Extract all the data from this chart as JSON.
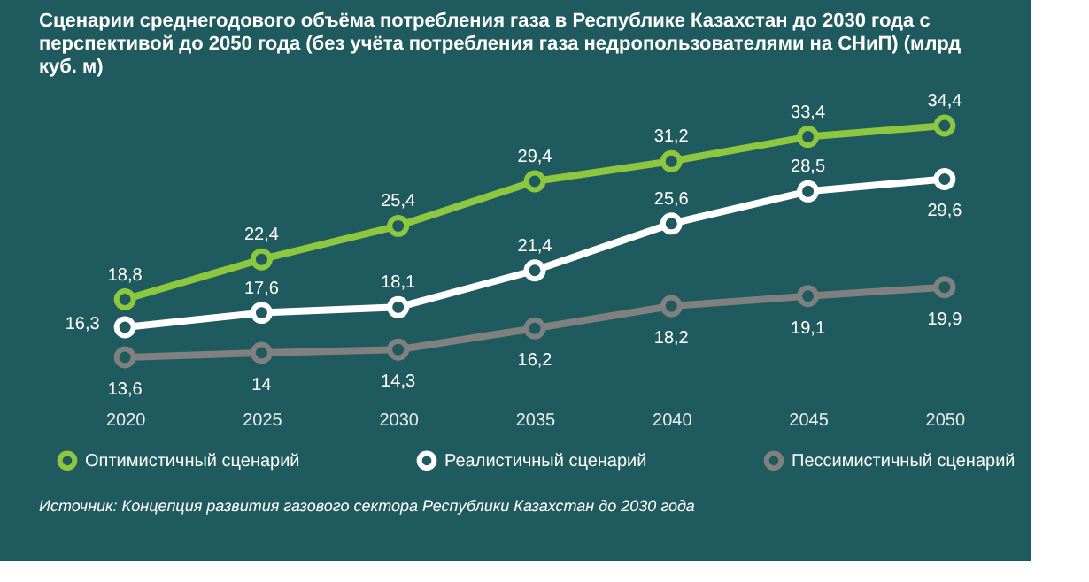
{
  "chart_data": {
    "type": "line",
    "title": "Сценарии среднегодового объёма потребления газа в Республике Казахстан до 2030 года с перспективой до 2050 года (без учёта потребления газа недропользователями на СНиП) (млрд куб. м)",
    "categories": [
      "2020",
      "2025",
      "2030",
      "2035",
      "2040",
      "2045",
      "2050"
    ],
    "series": [
      {
        "name": "Оптимистичный сценарий",
        "color": "#8dc63f",
        "values": [
          18.8,
          22.4,
          25.4,
          29.4,
          31.2,
          33.4,
          34.4
        ],
        "value_labels": [
          "18,8",
          "22,4",
          "25,4",
          "29,4",
          "31,2",
          "33,4",
          "34,4"
        ]
      },
      {
        "name": "Реалистичный сценарий",
        "color": "#ffffff",
        "values": [
          16.3,
          17.6,
          18.1,
          21.4,
          25.6,
          28.5,
          29.6
        ],
        "value_labels": [
          "16,3",
          "17,6",
          "18,1",
          "21,4",
          "25,6",
          "28,5",
          "29,6"
        ]
      },
      {
        "name": "Пессимистичный сценарий",
        "color": "#808080",
        "values": [
          13.6,
          14,
          14.3,
          16.2,
          18.2,
          19.1,
          19.9
        ],
        "value_labels": [
          "13,6",
          "14",
          "14,3",
          "16,2",
          "18,2",
          "19,1",
          "19,9"
        ]
      }
    ],
    "marker": "circle",
    "line_style": "solid",
    "grid": false,
    "legend": "bottom",
    "tick_labels": "x",
    "annotations": [
      "Источник: Концепция развития газового сектора Республики Казахстан до 2030 года"
    ]
  }
}
